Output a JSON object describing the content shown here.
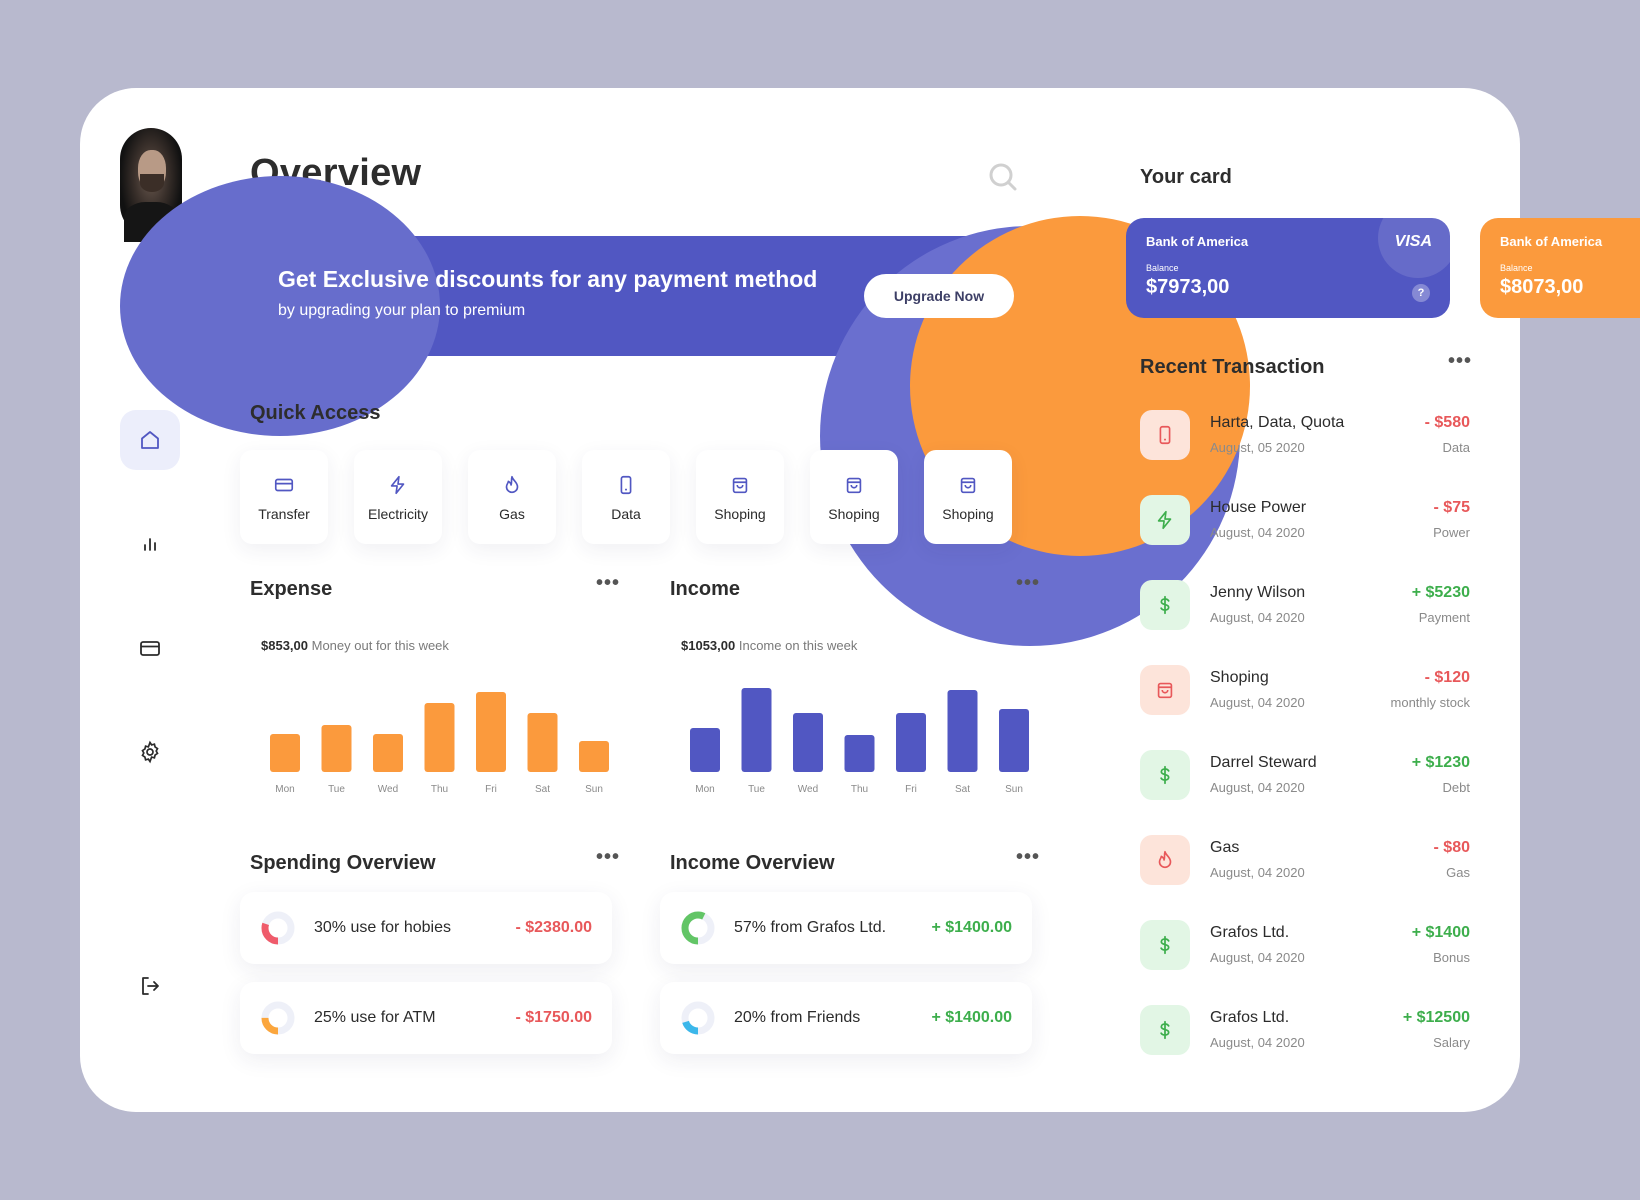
{
  "page": {
    "title": "Overview"
  },
  "banner": {
    "headline": "Get Exclusive discounts for any payment method",
    "sub": "by upgrading your plan to premium",
    "button": "Upgrade Now"
  },
  "quick_access": {
    "title": "Quick Access",
    "items": [
      {
        "label": "Transfer",
        "icon": "card-icon"
      },
      {
        "label": "Electricity",
        "icon": "bolt-icon"
      },
      {
        "label": "Gas",
        "icon": "flame-icon"
      },
      {
        "label": "Data",
        "icon": "phone-icon"
      },
      {
        "label": "Shoping",
        "icon": "bag-icon"
      },
      {
        "label": "Shoping",
        "icon": "bag-icon"
      },
      {
        "label": "Shoping",
        "icon": "bag-icon"
      }
    ]
  },
  "expense": {
    "title": "Expense",
    "amount": "$853,00",
    "caption": "Money out for this week"
  },
  "income": {
    "title": "Income",
    "amount": "$1053,00",
    "caption": "Income on this week"
  },
  "chart_data": [
    {
      "type": "bar",
      "title": "Expense",
      "categories": [
        "Mon",
        "Tue",
        "Wed",
        "Thu",
        "Fri",
        "Sat",
        "Sun"
      ],
      "values": [
        38,
        47,
        38,
        69,
        80,
        59,
        31
      ],
      "color": "#fb9a3d",
      "ylim": [
        0,
        100
      ]
    },
    {
      "type": "bar",
      "title": "Income",
      "categories": [
        "Mon",
        "Tue",
        "Wed",
        "Thu",
        "Fri",
        "Sat",
        "Sun"
      ],
      "values": [
        44,
        84,
        59,
        37,
        59,
        82,
        63
      ],
      "color": "#5157c2",
      "ylim": [
        0,
        100
      ]
    }
  ],
  "spending_overview": {
    "title": "Spending Overview",
    "items": [
      {
        "label": "30% use for hobies",
        "amount": "- $2380.00",
        "percent": 30,
        "color": "#ef5b6b"
      },
      {
        "label": "25% use for ATM",
        "amount": "- $1750.00",
        "percent": 25,
        "color": "#fba63d"
      }
    ]
  },
  "income_overview": {
    "title": "Income Overview",
    "items": [
      {
        "label": "57% from Grafos Ltd.",
        "amount": "+ $1400.00",
        "percent": 57,
        "color": "#62c566"
      },
      {
        "label": "20% from Friends",
        "amount": "+ $1400.00",
        "percent": 20,
        "color": "#3bb7ea"
      }
    ]
  },
  "cards": {
    "title": "Your card",
    "items": [
      {
        "bank": "Bank of America",
        "balance_label": "Balance",
        "balance": "$7973,00",
        "brand": "VISA",
        "help": "?",
        "color": "#5157c2"
      },
      {
        "bank": "Bank of America",
        "balance_label": "Balance",
        "balance": "$8073,00",
        "color": "#fb9a3d"
      }
    ]
  },
  "transactions": {
    "title": "Recent Transaction",
    "items": [
      {
        "name": "Harta, Data, Quota",
        "date": "August, 05 2020",
        "amount": "- $580",
        "category": "Data",
        "type": "neg",
        "icon": "phone-icon"
      },
      {
        "name": "House Power",
        "date": "August, 04 2020",
        "amount": "- $75",
        "category": "Power",
        "type": "pos-icon",
        "icon": "bolt-icon"
      },
      {
        "name": "Jenny Wilson",
        "date": "August, 04 2020",
        "amount": "+ $5230",
        "category": "Payment",
        "type": "pos",
        "icon": "dollar-icon"
      },
      {
        "name": "Shoping",
        "date": "August, 04 2020",
        "amount": "- $120",
        "category": "monthly stock",
        "type": "neg",
        "icon": "bag-icon"
      },
      {
        "name": "Darrel Steward",
        "date": "August, 04 2020",
        "amount": "+ $1230",
        "category": "Debt",
        "type": "pos",
        "icon": "dollar-icon"
      },
      {
        "name": "Gas",
        "date": "August, 04 2020",
        "amount": "- $80",
        "category": "Gas",
        "type": "neg",
        "icon": "flame-icon"
      },
      {
        "name": "Grafos Ltd.",
        "date": "August, 04 2020",
        "amount": "+ $1400",
        "category": "Bonus",
        "type": "pos",
        "icon": "dollar-icon"
      },
      {
        "name": "Grafos Ltd.",
        "date": "August, 04 2020",
        "amount": "+ $12500",
        "category": "Salary",
        "type": "pos",
        "icon": "dollar-icon"
      }
    ]
  },
  "colors": {
    "accent": "#5157c2",
    "orange": "#fb9a3d",
    "negative": "#e8585a",
    "positive": "#3dae4c"
  }
}
